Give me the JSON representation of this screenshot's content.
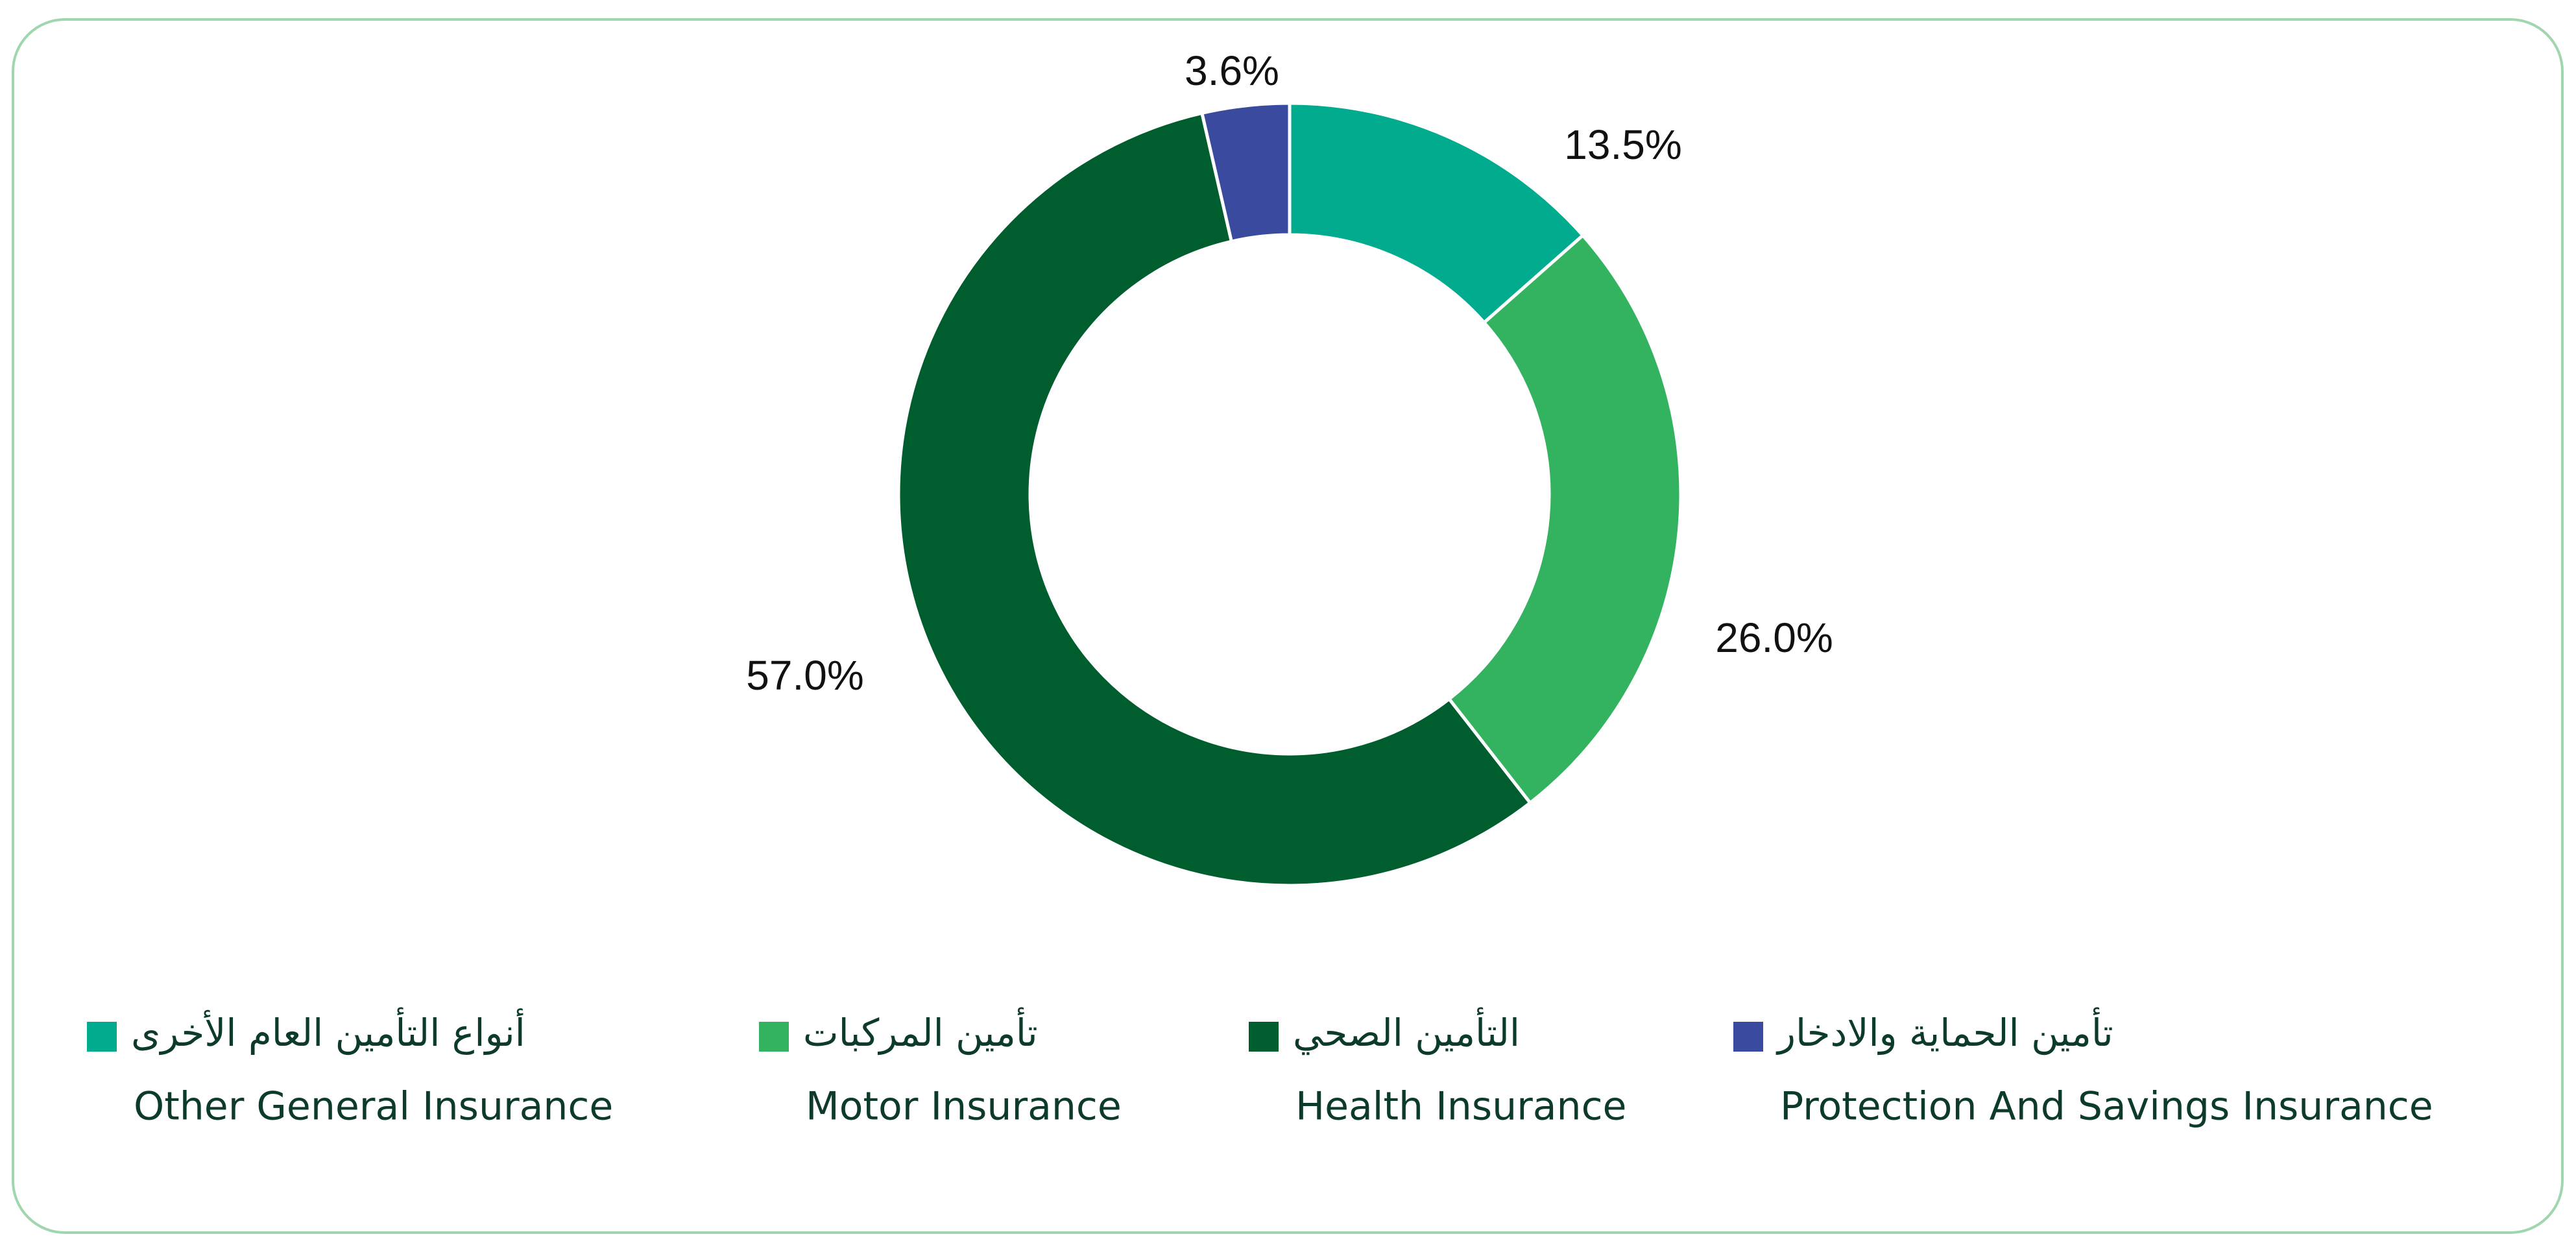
{
  "chart_data": {
    "type": "donut",
    "categories": [
      "Other General Insurance",
      "Motor Insurance",
      "Health Insurance",
      "Protection And Savings Insurance"
    ],
    "categories_arabic": [
      "أنواع التأمين العام الأخرى",
      "تأمين المركبات",
      "التأمين الصحي",
      "تأمين الحماية والادخار"
    ],
    "values": [
      13.5,
      26.0,
      57.0,
      3.6
    ],
    "value_labels": [
      "13.5%",
      "26.0%",
      "57.0%",
      "3.6%"
    ],
    "colors": [
      "#00ab8e",
      "#33b35f",
      "#005d2e",
      "#3a4a9e"
    ]
  }
}
